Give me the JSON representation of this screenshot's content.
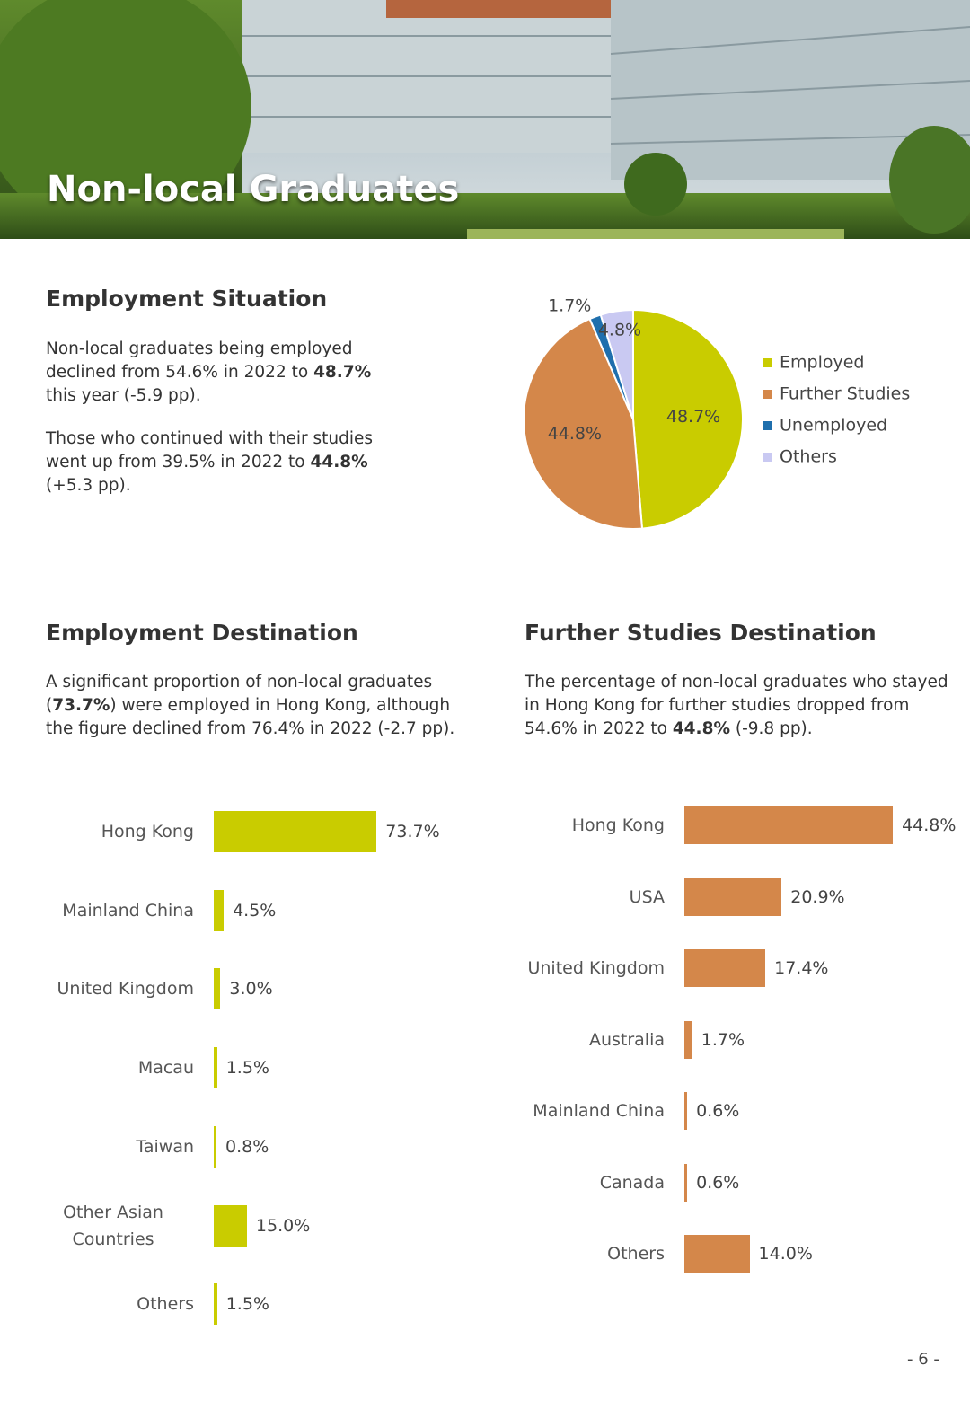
{
  "header": {
    "title": "Non-local Graduates"
  },
  "sections": [
    {
      "heading": "Employment Situation",
      "paragraphs": [
        [
          {
            "text": "Non-local graduates being employed declined from 54.6% in 2022 to ",
            "bold": false
          },
          {
            "text": "48.7%",
            "bold": true
          },
          {
            "text": " this year (-5.9 pp).",
            "bold": false
          }
        ],
        [
          {
            "text": "Those who continued with their studies went up from 39.5% in 2022 to ",
            "bold": false
          },
          {
            "text": "44.8%",
            "bold": true
          },
          {
            "text": " (+5.3 pp).",
            "bold": false
          }
        ]
      ]
    },
    {
      "heading": "Employment Destination",
      "paragraphs": [
        [
          {
            "text": "A significant proportion of non-local graduates (",
            "bold": false
          },
          {
            "text": "73.7%",
            "bold": true
          },
          {
            "text": ") were employed in Hong Kong, although the figure declined from 76.4% in 2022 (-2.7 pp).",
            "bold": false
          }
        ]
      ]
    },
    {
      "heading": "Further Studies Destination",
      "paragraphs": [
        [
          {
            "text": "The percentage of non-local graduates who stayed in Hong Kong for further studies dropped from 54.6% in 2022 to ",
            "bold": false
          },
          {
            "text": "44.8%",
            "bold": true
          },
          {
            "text": " (-9.8 pp).",
            "bold": false
          }
        ]
      ]
    }
  ],
  "chart_data": [
    {
      "type": "pie",
      "categories": [
        "Employed",
        "Further Studies",
        "Unemployed",
        "Others"
      ],
      "values": [
        48.7,
        44.8,
        1.7,
        4.8
      ],
      "value_labels": [
        "48.7%",
        "44.8%",
        "1.7%",
        "4.8%"
      ],
      "colors": [
        "#c9cc00",
        "#d4874a",
        "#1f6fad",
        "#c9c9f2"
      ],
      "legend": "right"
    },
    {
      "type": "bar",
      "orientation": "horizontal",
      "categories": [
        "Hong Kong",
        "Mainland China",
        "United Kingdom",
        "Macau",
        "Taiwan",
        "Other Asian Countries",
        "Others"
      ],
      "values": [
        73.7,
        4.5,
        3.0,
        1.5,
        0.8,
        15.0,
        1.5
      ],
      "value_labels": [
        "73.7%",
        "4.5%",
        "3.0%",
        "1.5%",
        "0.8%",
        "15.0%",
        "1.5%"
      ],
      "color": "#c9cc00"
    },
    {
      "type": "bar",
      "orientation": "horizontal",
      "categories": [
        "Hong Kong",
        "USA",
        "United Kingdom",
        "Australia",
        "Mainland China",
        "Canada",
        "Others"
      ],
      "values": [
        44.8,
        20.9,
        17.4,
        1.7,
        0.6,
        0.6,
        14.0
      ],
      "value_labels": [
        "44.8%",
        "20.9%",
        "17.4%",
        "1.7%",
        "0.6%",
        "0.6%",
        "14.0%"
      ],
      "color": "#d4874a"
    }
  ],
  "page_number": "- 6 -"
}
